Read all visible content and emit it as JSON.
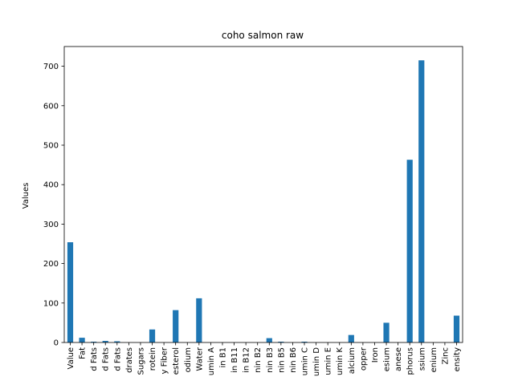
{
  "chart_data": {
    "type": "bar",
    "title": "coho salmon raw",
    "xlabel": "",
    "ylabel": "Values",
    "ylim": [
      0,
      750
    ],
    "yticks": [
      0,
      100,
      200,
      300,
      400,
      500,
      600,
      700
    ],
    "categories": [
      "Value",
      "Fat",
      "d Fats",
      "d Fats",
      "d Fats",
      "drates",
      "Sugars",
      "rotein",
      "y Fiber",
      "esterol",
      "odium",
      "Water",
      "umin A",
      "in B1",
      "in B11",
      "in B12",
      "nin B2",
      "nin B3",
      "nin B5",
      "nin B6",
      "umin C",
      "umin D",
      "umin E",
      "umin K",
      "alcium",
      "opper",
      "Iron",
      "esium",
      "anese",
      "phorus",
      "ssium",
      "enium",
      "Zinc",
      "ensity"
    ],
    "values": [
      254,
      12,
      2,
      4,
      3,
      0,
      0,
      33,
      0,
      82,
      0,
      112,
      0,
      0,
      0,
      0,
      0,
      11,
      2,
      0,
      2,
      0,
      0,
      0,
      19,
      0,
      0,
      50,
      0,
      463,
      715,
      0,
      0,
      68
    ],
    "bar_color": "#1f77b4",
    "grid": false,
    "legend": "none"
  }
}
